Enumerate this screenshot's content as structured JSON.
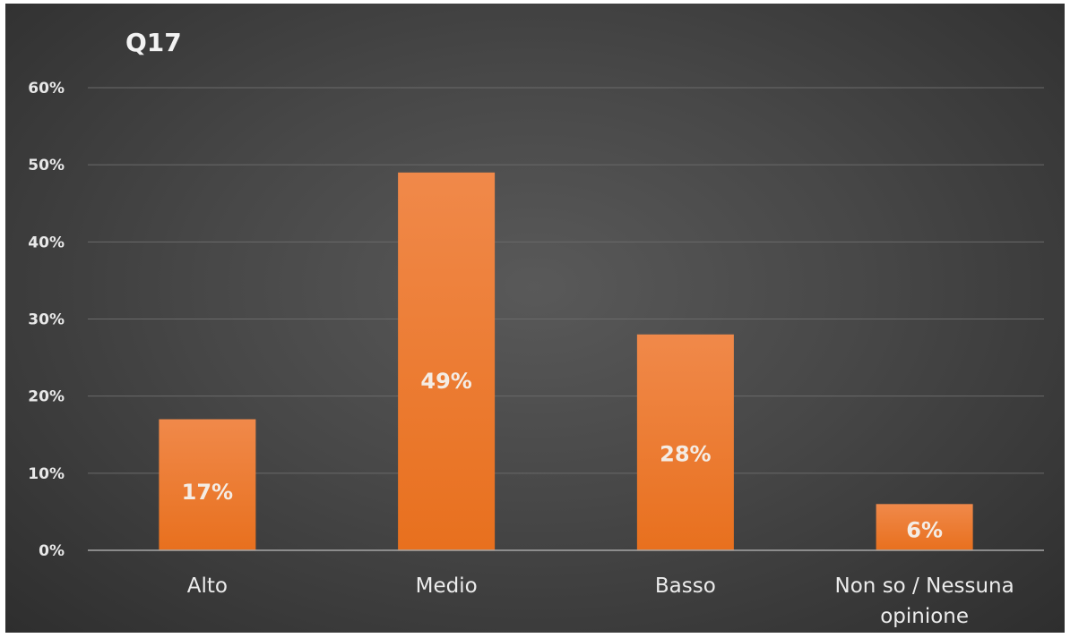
{
  "chart_data": {
    "type": "bar",
    "title": "Q17",
    "categories": [
      "Alto",
      "Medio",
      "Basso",
      "Non so / Nessuna opinione"
    ],
    "category_lines": [
      [
        "Alto"
      ],
      [
        "Medio"
      ],
      [
        "Basso"
      ],
      [
        "Non so / Nessuna",
        "opinione"
      ]
    ],
    "values": [
      17,
      49,
      28,
      6
    ],
    "value_labels": [
      "17%",
      "49%",
      "28%",
      "6%"
    ],
    "y_ticks": [
      "0%",
      "10%",
      "20%",
      "30%",
      "40%",
      "50%",
      "60%"
    ],
    "ylim": [
      0,
      60
    ],
    "grid": true,
    "legend": false,
    "colors": {
      "bar_top": "#f0894a",
      "bar_bottom": "#e8701e",
      "gridline": "#6a6a6a",
      "axis": "#a6a6a6"
    }
  }
}
